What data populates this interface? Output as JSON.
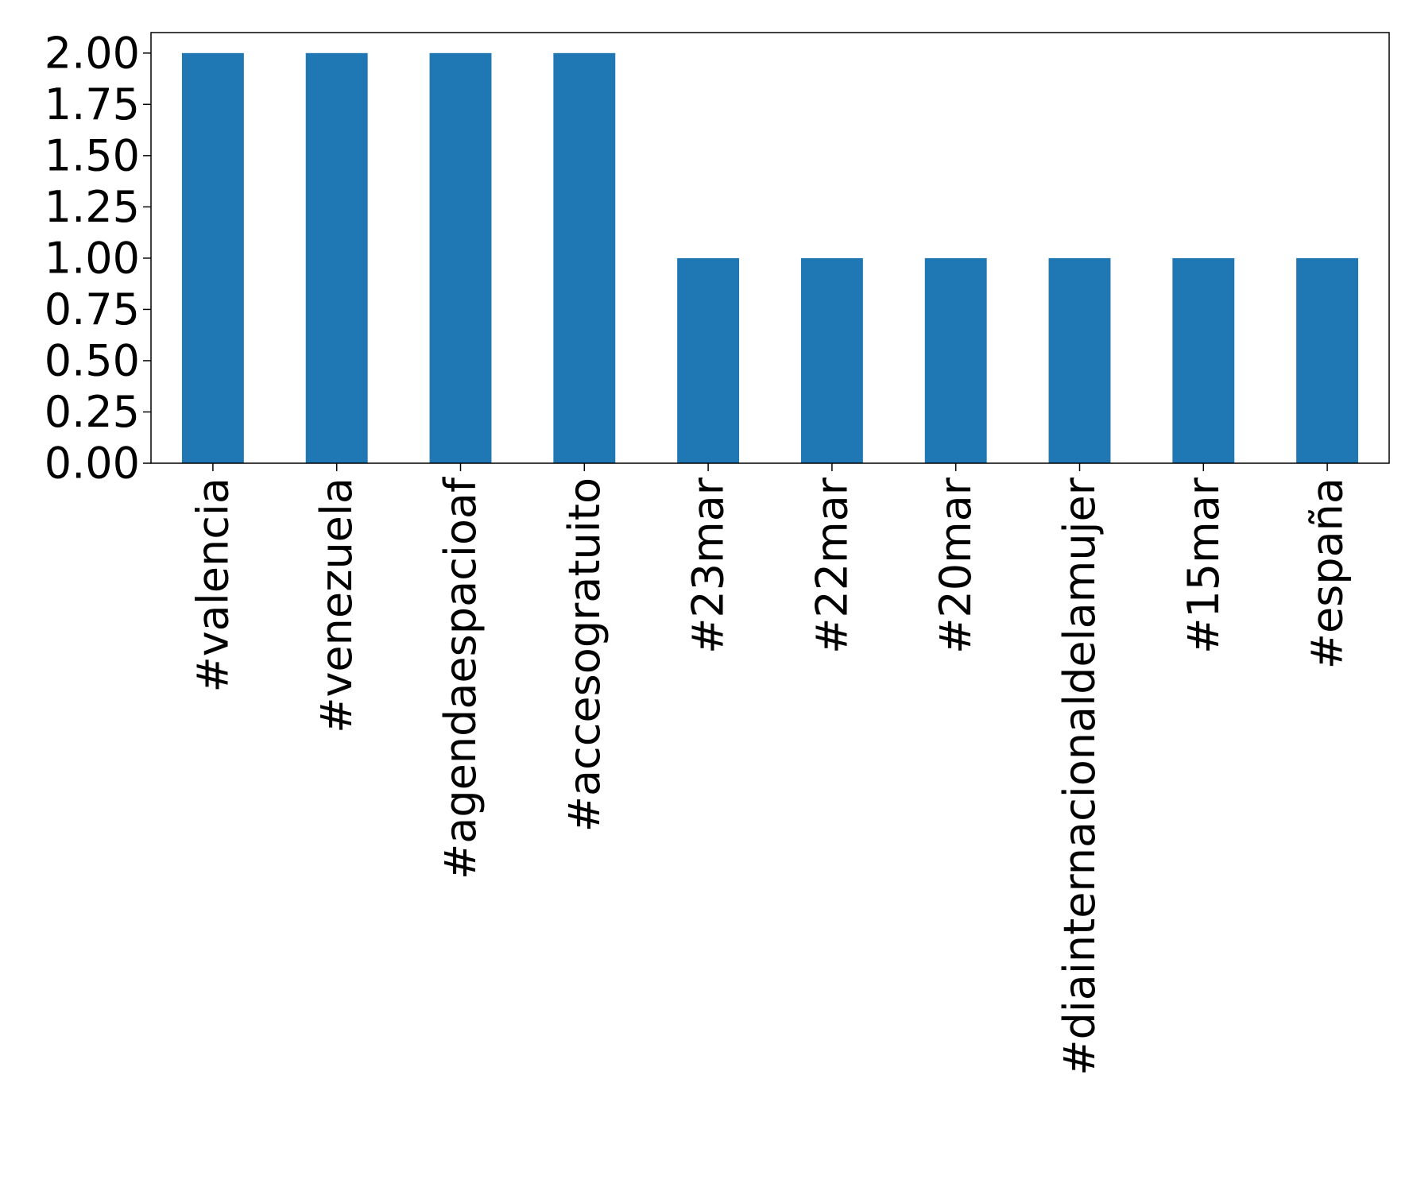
{
  "chart_data": {
    "type": "bar",
    "title": "",
    "xlabel": "",
    "ylabel": "",
    "categories": [
      "#valencia",
      "#venezuela",
      "#agendaespacioaf",
      "#accesogratuito",
      "#23mar",
      "#22mar",
      "#20mar",
      "#diainternacionaldelamujer",
      "#15mar",
      "#españa"
    ],
    "values": [
      2,
      2,
      2,
      2,
      1,
      1,
      1,
      1,
      1,
      1
    ],
    "ylim": [
      0,
      2.1
    ],
    "yticks": [
      "0.00",
      "0.25",
      "0.50",
      "0.75",
      "1.00",
      "1.25",
      "1.50",
      "1.75",
      "2.00"
    ],
    "grid": false,
    "legend": "none",
    "bar_color": "#1f77b4"
  }
}
